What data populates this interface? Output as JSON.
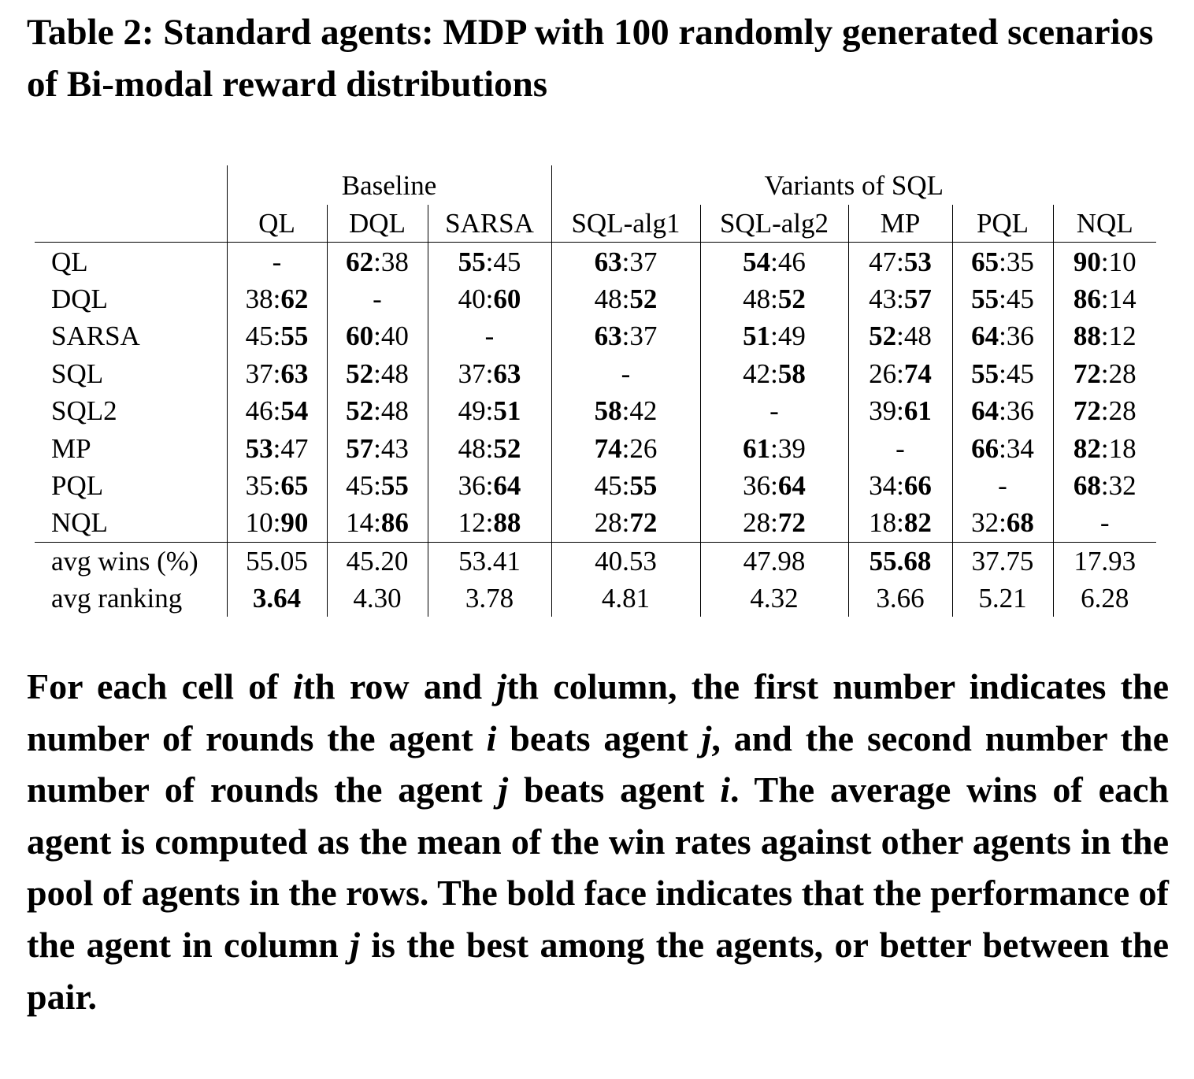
{
  "caption": "Table 2: Standard agents: MDP with 100 randomly generated scenarios of Bi-modal reward distributions",
  "table": {
    "group_headers": [
      {
        "label": "Baseline",
        "span": 3
      },
      {
        "label": "Variants of SQL",
        "span": 5
      }
    ],
    "columns": [
      "QL",
      "DQL",
      "SARSA",
      "SQL-alg1",
      "SQL-alg2",
      "MP",
      "PQL",
      "NQL"
    ],
    "rows": [
      {
        "label": "QL",
        "cells": [
          [
            {
              "t": "-"
            }
          ],
          [
            {
              "t": "62",
              "b": true
            },
            {
              "t": ":38"
            }
          ],
          [
            {
              "t": "55",
              "b": true
            },
            {
              "t": ":45"
            }
          ],
          [
            {
              "t": "63",
              "b": true
            },
            {
              "t": ":37"
            }
          ],
          [
            {
              "t": "54",
              "b": true
            },
            {
              "t": ":46"
            }
          ],
          [
            {
              "t": "47:"
            },
            {
              "t": "53",
              "b": true
            }
          ],
          [
            {
              "t": "65",
              "b": true
            },
            {
              "t": ":35"
            }
          ],
          [
            {
              "t": "90",
              "b": true
            },
            {
              "t": ":10"
            }
          ]
        ]
      },
      {
        "label": "DQL",
        "cells": [
          [
            {
              "t": "38:"
            },
            {
              "t": "62",
              "b": true
            }
          ],
          [
            {
              "t": "-"
            }
          ],
          [
            {
              "t": "40:"
            },
            {
              "t": "60",
              "b": true
            }
          ],
          [
            {
              "t": "48:"
            },
            {
              "t": "52",
              "b": true
            }
          ],
          [
            {
              "t": "48:"
            },
            {
              "t": "52",
              "b": true
            }
          ],
          [
            {
              "t": "43:"
            },
            {
              "t": "57",
              "b": true
            }
          ],
          [
            {
              "t": "55",
              "b": true
            },
            {
              "t": ":45"
            }
          ],
          [
            {
              "t": "86",
              "b": true
            },
            {
              "t": ":14"
            }
          ]
        ]
      },
      {
        "label": "SARSA",
        "cells": [
          [
            {
              "t": "45:"
            },
            {
              "t": "55",
              "b": true
            }
          ],
          [
            {
              "t": "60",
              "b": true
            },
            {
              "t": ":40"
            }
          ],
          [
            {
              "t": "-"
            }
          ],
          [
            {
              "t": "63",
              "b": true
            },
            {
              "t": ":37"
            }
          ],
          [
            {
              "t": "51",
              "b": true
            },
            {
              "t": ":49"
            }
          ],
          [
            {
              "t": "52",
              "b": true
            },
            {
              "t": ":48"
            }
          ],
          [
            {
              "t": "64",
              "b": true
            },
            {
              "t": ":36"
            }
          ],
          [
            {
              "t": "88",
              "b": true
            },
            {
              "t": ":12"
            }
          ]
        ]
      },
      {
        "label": "SQL",
        "cells": [
          [
            {
              "t": "37:"
            },
            {
              "t": "63",
              "b": true
            }
          ],
          [
            {
              "t": "52",
              "b": true
            },
            {
              "t": ":48"
            }
          ],
          [
            {
              "t": "37:"
            },
            {
              "t": "63",
              "b": true
            }
          ],
          [
            {
              "t": "-"
            }
          ],
          [
            {
              "t": "42:"
            },
            {
              "t": "58",
              "b": true
            }
          ],
          [
            {
              "t": "26:"
            },
            {
              "t": "74",
              "b": true
            }
          ],
          [
            {
              "t": "55",
              "b": true
            },
            {
              "t": ":45"
            }
          ],
          [
            {
              "t": "72",
              "b": true
            },
            {
              "t": ":28"
            }
          ]
        ]
      },
      {
        "label": "SQL2",
        "cells": [
          [
            {
              "t": "46:"
            },
            {
              "t": "54",
              "b": true
            }
          ],
          [
            {
              "t": "52",
              "b": true
            },
            {
              "t": ":48"
            }
          ],
          [
            {
              "t": "49:"
            },
            {
              "t": "51",
              "b": true
            }
          ],
          [
            {
              "t": "58",
              "b": true
            },
            {
              "t": ":42"
            }
          ],
          [
            {
              "t": "-"
            }
          ],
          [
            {
              "t": "39:"
            },
            {
              "t": "61",
              "b": true
            }
          ],
          [
            {
              "t": "64",
              "b": true
            },
            {
              "t": ":36"
            }
          ],
          [
            {
              "t": "72",
              "b": true
            },
            {
              "t": ":28"
            }
          ]
        ]
      },
      {
        "label": "MP",
        "cells": [
          [
            {
              "t": "53",
              "b": true
            },
            {
              "t": ":47"
            }
          ],
          [
            {
              "t": "57",
              "b": true
            },
            {
              "t": ":43"
            }
          ],
          [
            {
              "t": "48:"
            },
            {
              "t": "52",
              "b": true
            }
          ],
          [
            {
              "t": "74",
              "b": true
            },
            {
              "t": ":26"
            }
          ],
          [
            {
              "t": "61",
              "b": true
            },
            {
              "t": ":39"
            }
          ],
          [
            {
              "t": "-"
            }
          ],
          [
            {
              "t": "66",
              "b": true
            },
            {
              "t": ":34"
            }
          ],
          [
            {
              "t": "82",
              "b": true
            },
            {
              "t": ":18"
            }
          ]
        ]
      },
      {
        "label": "PQL",
        "cells": [
          [
            {
              "t": "35:"
            },
            {
              "t": "65",
              "b": true
            }
          ],
          [
            {
              "t": "45:"
            },
            {
              "t": "55",
              "b": true
            }
          ],
          [
            {
              "t": "36:"
            },
            {
              "t": "64",
              "b": true
            }
          ],
          [
            {
              "t": "45:"
            },
            {
              "t": "55",
              "b": true
            }
          ],
          [
            {
              "t": "36:"
            },
            {
              "t": "64",
              "b": true
            }
          ],
          [
            {
              "t": "34:"
            },
            {
              "t": "66",
              "b": true
            }
          ],
          [
            {
              "t": "-"
            }
          ],
          [
            {
              "t": "68",
              "b": true
            },
            {
              "t": ":32"
            }
          ]
        ]
      },
      {
        "label": "NQL",
        "cells": [
          [
            {
              "t": "10:"
            },
            {
              "t": "90",
              "b": true
            }
          ],
          [
            {
              "t": "14:"
            },
            {
              "t": "86",
              "b": true
            }
          ],
          [
            {
              "t": "12:"
            },
            {
              "t": "88",
              "b": true
            }
          ],
          [
            {
              "t": "28:"
            },
            {
              "t": "72",
              "b": true
            }
          ],
          [
            {
              "t": "28:"
            },
            {
              "t": "72",
              "b": true
            }
          ],
          [
            {
              "t": "18:"
            },
            {
              "t": "82",
              "b": true
            }
          ],
          [
            {
              "t": "32:"
            },
            {
              "t": "68",
              "b": true
            }
          ],
          [
            {
              "t": "-"
            }
          ]
        ]
      }
    ],
    "summary_rows": [
      {
        "label": "avg wins (%)",
        "cells": [
          [
            {
              "t": "55.05"
            }
          ],
          [
            {
              "t": "45.20"
            }
          ],
          [
            {
              "t": "53.41"
            }
          ],
          [
            {
              "t": "40.53"
            }
          ],
          [
            {
              "t": "47.98"
            }
          ],
          [
            {
              "t": "55.68",
              "b": true
            }
          ],
          [
            {
              "t": "37.75"
            }
          ],
          [
            {
              "t": "17.93"
            }
          ]
        ]
      },
      {
        "label": "avg ranking",
        "cells": [
          [
            {
              "t": "3.64",
              "b": true
            }
          ],
          [
            {
              "t": "4.30"
            }
          ],
          [
            {
              "t": "3.78"
            }
          ],
          [
            {
              "t": "4.81"
            }
          ],
          [
            {
              "t": "4.32"
            }
          ],
          [
            {
              "t": "3.66"
            }
          ],
          [
            {
              "t": "5.21"
            }
          ],
          [
            {
              "t": "6.28"
            }
          ]
        ]
      }
    ]
  },
  "note": [
    {
      "t": "For each cell of "
    },
    {
      "t": "i",
      "i": true
    },
    {
      "t": "th row and "
    },
    {
      "t": "j",
      "i": true
    },
    {
      "t": "th column, the first number indicates the number of rounds the agent "
    },
    {
      "t": "i",
      "i": true
    },
    {
      "t": " beats agent "
    },
    {
      "t": "j",
      "i": true
    },
    {
      "t": ", and the second number the number of rounds the agent "
    },
    {
      "t": "j",
      "i": true
    },
    {
      "t": " beats agent "
    },
    {
      "t": "i",
      "i": true
    },
    {
      "t": ". The average wins of each agent is computed as the mean of the win rates against other agents in the pool of agents in the rows. The bold face indicates that the performance of the agent in column "
    },
    {
      "t": "j",
      "i": true
    },
    {
      "t": " is the best among the agents, or better between the pair."
    }
  ]
}
